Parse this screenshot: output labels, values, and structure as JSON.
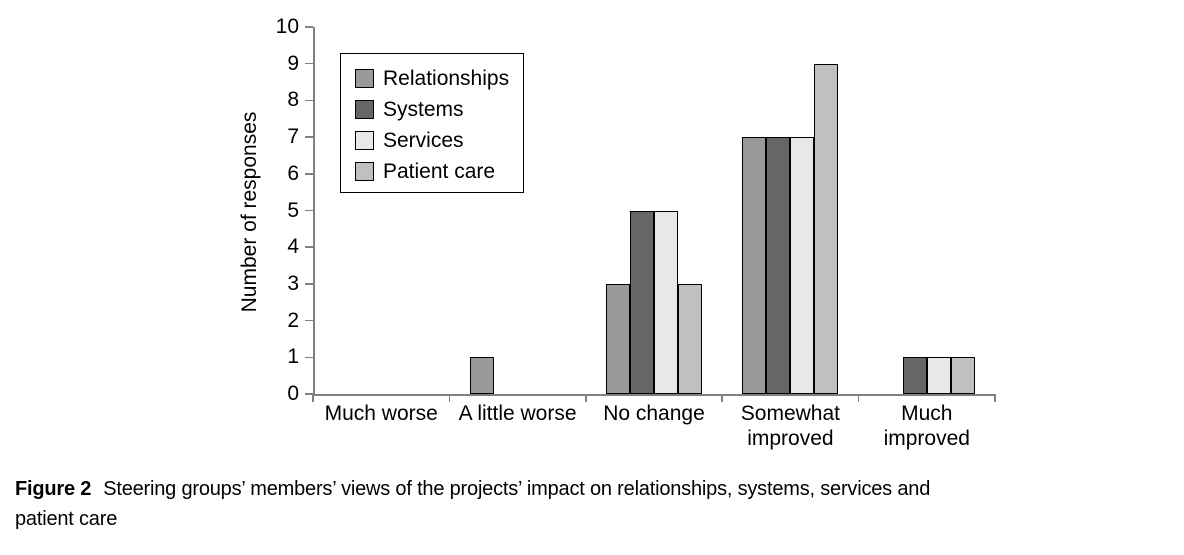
{
  "figure": {
    "caption_label": "Figure 2",
    "caption_line1": "Steering groups’ members’ views of the projects’ impact on relationships, systems, services and",
    "caption_line2": "patient care"
  },
  "chart_data": {
    "type": "bar",
    "title": "",
    "xlabel": "",
    "ylabel": "Number of responses",
    "ylim": [
      0,
      10
    ],
    "yticks": [
      0,
      1,
      2,
      3,
      4,
      5,
      6,
      7,
      8,
      9,
      10
    ],
    "grid": false,
    "legend_position": "inside-top-left",
    "categories": [
      "Much worse",
      "A little worse",
      "No change",
      "Somewhat improved",
      "Much improved"
    ],
    "category_display_lines": [
      [
        "Much worse"
      ],
      [
        "A little worse"
      ],
      [
        "No change"
      ],
      [
        "Somewhat",
        "improved"
      ],
      [
        "Much",
        "improved"
      ]
    ],
    "series": [
      {
        "name": "Relationships",
        "color": "#999999",
        "values": [
          0,
          1,
          3,
          7,
          0
        ]
      },
      {
        "name": "Systems",
        "color": "#666666",
        "values": [
          0,
          0,
          5,
          7,
          1
        ]
      },
      {
        "name": "Services",
        "color": "#e8e8e8",
        "values": [
          0,
          0,
          5,
          7,
          1
        ]
      },
      {
        "name": "Patient care",
        "color": "#c0c0c0",
        "values": [
          0,
          0,
          3,
          9,
          1
        ]
      }
    ],
    "colors": {
      "axis": "#808080",
      "bar_border": "#000000",
      "text": "#000000",
      "background": "#ffffff"
    }
  }
}
